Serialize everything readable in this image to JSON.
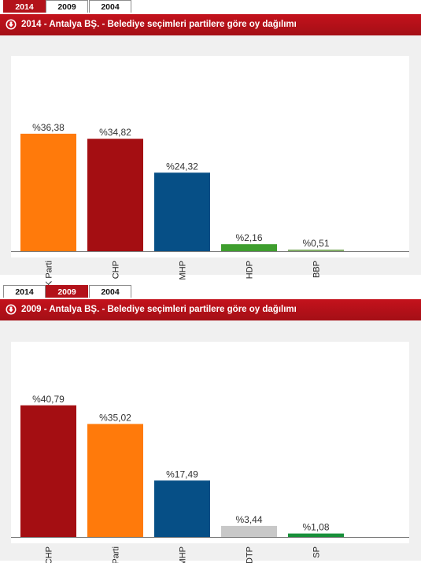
{
  "panels": [
    {
      "tabs": [
        "2014",
        "2009",
        "2004"
      ],
      "active_tab": "2014",
      "header_title": "2014 - Antalya BŞ. - Belediye seçimleri partilere göre oy dağılımı",
      "header_icon": "red-download-icon"
    },
    {
      "tabs": [
        "2014",
        "2009",
        "2004"
      ],
      "active_tab": "2009",
      "header_title": "2009 - Antalya BŞ. - Belediye seçimleri partilere göre oy dağılımı",
      "header_icon": "red-download-icon"
    }
  ],
  "chart_data": [
    {
      "type": "bar",
      "title": "2014 - Antalya BŞ. - Belediye seçimleri partilere göre oy dağılımı",
      "categories": [
        "AK Parti",
        "CHP",
        "MHP",
        "HDP",
        "BBP"
      ],
      "values": [
        36.38,
        34.82,
        24.32,
        2.16,
        0.51
      ],
      "data_labels": [
        "%36,38",
        "%34,82",
        "%24,32",
        "%2,16",
        "%0,51"
      ],
      "colors": [
        "#ff7a0b",
        "#a40e12",
        "#064f86",
        "#3e9e2e",
        "#86b06a"
      ],
      "ylim": [
        0,
        40
      ],
      "grid": false,
      "legend": "none"
    },
    {
      "type": "bar",
      "title": "2009 - Antalya BŞ. - Belediye seçimleri partilere göre oy dağılımı",
      "categories": [
        "CHP",
        "AK Parti",
        "MHP",
        "DTP",
        "SP"
      ],
      "values": [
        40.79,
        35.02,
        17.49,
        3.44,
        1.08
      ],
      "data_labels": [
        "%40,79",
        "%35,02",
        "%17,49",
        "%3,44",
        "%1,08"
      ],
      "colors": [
        "#a40e12",
        "#ff7a0b",
        "#064f86",
        "#c8c8c8",
        "#18903a"
      ],
      "ylim": [
        0,
        45
      ],
      "grid": false,
      "legend": "none"
    }
  ]
}
